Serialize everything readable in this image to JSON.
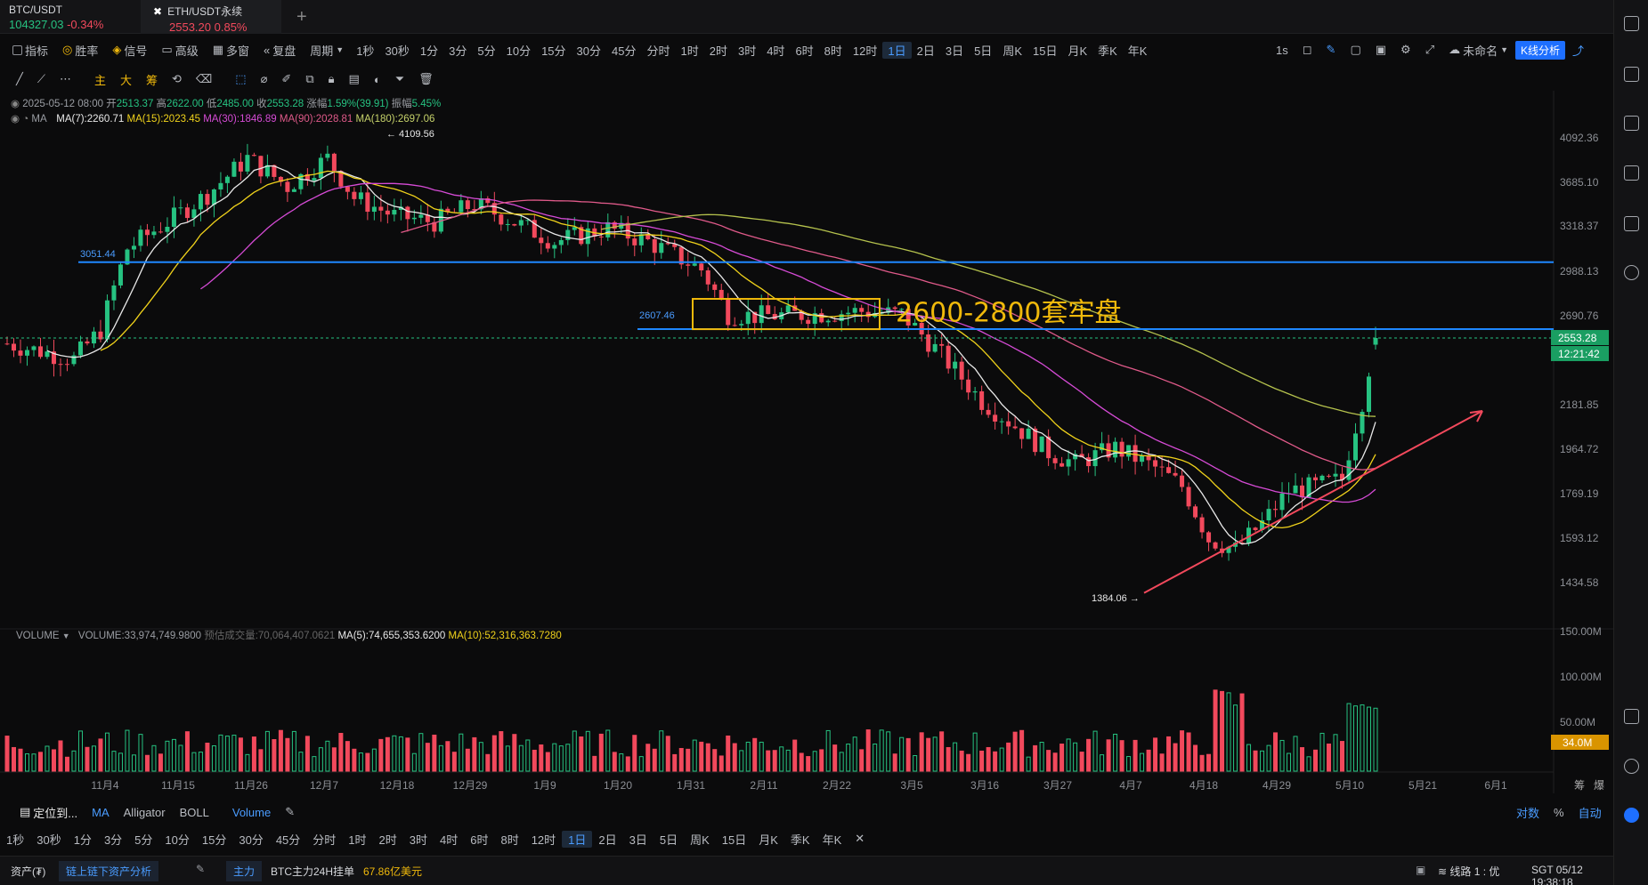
{
  "tabs": [
    {
      "symbol": "BTC/USDT",
      "price": "104327.03",
      "change": "-0.34%"
    },
    {
      "symbol": "ETH/USDT永续",
      "price": "2553.20",
      "change": "0.85%"
    }
  ],
  "toolbar1": {
    "left": [
      "指标",
      "胜率",
      "信号",
      "高级",
      "多窗",
      "复盘",
      "周期"
    ],
    "periods": [
      "1秒",
      "30秒",
      "1分",
      "3分",
      "5分",
      "10分",
      "15分",
      "30分",
      "45分",
      "分时",
      "1时",
      "2时",
      "3时",
      "4时",
      "6时",
      "8时",
      "12时",
      "1日",
      "2日",
      "3日",
      "5日",
      "周K",
      "15日",
      "月K",
      "季K",
      "年K"
    ],
    "selected_period": "1日",
    "right": {
      "interval": "1s",
      "layout_name": "未命名",
      "kline_analysis": "K线分析"
    }
  },
  "toolbar2": {
    "chars": [
      "主",
      "大",
      "筹"
    ]
  },
  "ohlc": {
    "date": "2025-05-12 08:00",
    "open_label": "开",
    "open": "2513.37",
    "high_label": "高",
    "high": "2622.00",
    "low_label": "低",
    "low": "2485.00",
    "close_label": "收",
    "close": "2553.28",
    "chg_label": "涨幅",
    "chg": "1.59%(39.91)",
    "amp_label": "振幅",
    "amp": "5.45%"
  },
  "ma_line": {
    "label": "MA",
    "ma7": "MA(7):2260.71",
    "ma15": "MA(15):2023.45",
    "ma30": "MA(30):1846.89",
    "ma90": "MA(90):2028.81",
    "ma180": "MA(180):2697.06"
  },
  "price_axis": [
    "4092.36",
    "3685.10",
    "3318.37",
    "2988.13",
    "2690.76",
    "2181.85",
    "1964.72",
    "1769.19",
    "1593.12",
    "1434.58"
  ],
  "current_price": "2553.28",
  "countdown": "12:21:42",
  "annotations": {
    "high_marker": "← 4109.56",
    "low_marker": "1384.06 →",
    "line1_label": "3051.44",
    "line2_label": "2607.46",
    "box_text": "2600-2800套牢盘"
  },
  "volume": {
    "label": "VOLUME",
    "value": "VOLUME:33,974,749.9800",
    "estimate": "预估成交量:70,064,407.0621",
    "ma5": "MA(5):74,655,353.6200",
    "ma10": "MA(10):52,316,363.7280",
    "axis": [
      "150.00M",
      "100.00M",
      "50.00M"
    ],
    "current": "34.0M"
  },
  "date_axis": [
    "11月4",
    "11月15",
    "11月26",
    "12月7",
    "12月18",
    "12月29",
    "1月9",
    "1月20",
    "1月31",
    "2月11",
    "2月22",
    "3月5",
    "3月16",
    "3月27",
    "4月7",
    "4月18",
    "4月29",
    "5月10",
    "5月21",
    "6月1"
  ],
  "date_axis_right": [
    "筹",
    "爆"
  ],
  "bottom1": {
    "locate": "定位到...",
    "indicators": [
      "MA",
      "Alligator",
      "BOLL"
    ],
    "volume": "Volume",
    "right": [
      "对数",
      "%",
      "自动"
    ]
  },
  "bottom2": {
    "periods": [
      "1秒",
      "30秒",
      "1分",
      "3分",
      "5分",
      "10分",
      "15分",
      "30分",
      "45分",
      "分时",
      "1时",
      "2时",
      "3时",
      "4时",
      "6时",
      "8时",
      "12时",
      "1日",
      "2日",
      "3日",
      "5日",
      "周K",
      "15日",
      "月K",
      "季K",
      "年K"
    ],
    "selected": "1日"
  },
  "status": {
    "assets": "资产(₮)",
    "onchain": "链上链下资产分析",
    "main": "主力",
    "btc_text": "BTC主力24H挂单",
    "btc_value": "67.86亿美元",
    "line": "线路 1 : 优",
    "time": "SGT 05/12 19:38:18"
  },
  "colors": {
    "up": "#26c281",
    "down": "#f2495c",
    "accent": "#1e6fff",
    "box": "#f0b90b"
  }
}
